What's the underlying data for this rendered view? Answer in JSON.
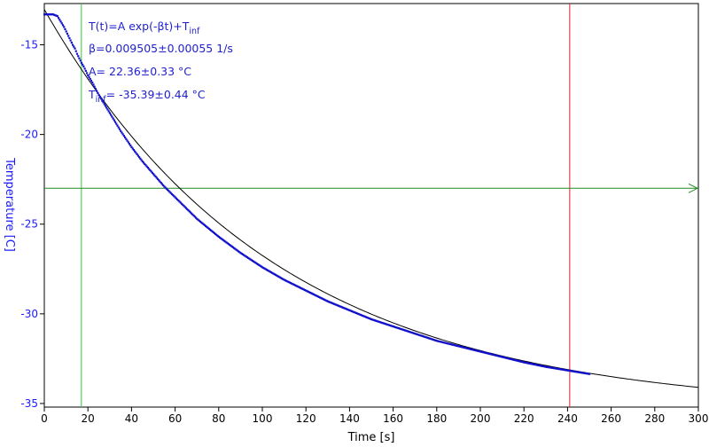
{
  "chart_data": {
    "type": "scatter",
    "xlabel": "Time [s]",
    "ylabel": "Temperature [C]",
    "xlim": [
      0,
      300
    ],
    "ylim": [
      -35,
      -12
    ],
    "xticks": [
      0,
      20,
      40,
      60,
      80,
      100,
      120,
      140,
      160,
      180,
      200,
      220,
      240,
      260,
      280,
      300
    ],
    "yticks": [
      -15,
      -20,
      -25,
      -30,
      -35
    ],
    "grid": false,
    "colors": {
      "data": "#1111cc",
      "fit": "#000000",
      "green_cursor": "#33cc33",
      "red_cursor": "#dd2222",
      "hline": "#228b22",
      "ytick_text": "#1a1aff",
      "annotation_text": "#2222cc"
    },
    "annotations": {
      "formula_main": "T(t)=A exp(-βt)+T",
      "formula_sub": "inf",
      "beta": "β=0.009505±0.00055 1/s",
      "A": "A= 22.36±0.33 °C",
      "tinf_prefix": "T",
      "tinf_sub": "inf",
      "tinf_value": "= -35.39±0.44 °C"
    },
    "fit": {
      "A": 22.36,
      "beta": 0.009505,
      "T_inf": -35.39,
      "x_range": [
        0,
        300
      ]
    },
    "series": [
      {
        "kind": "measured",
        "x": [
          0,
          2,
          4,
          6,
          7,
          8,
          9,
          10,
          11,
          12,
          13,
          14,
          15,
          16,
          17,
          18,
          20,
          22,
          25,
          30,
          35,
          40,
          45,
          50,
          55,
          60,
          65,
          70,
          80,
          90,
          100,
          110,
          120,
          130,
          140,
          150,
          160,
          170,
          180,
          190,
          200,
          210,
          220,
          230,
          240,
          245,
          250
        ],
        "y": [
          -13.3,
          -13.3,
          -13.3,
          -13.4,
          -13.6,
          -13.8,
          -14.0,
          -14.25,
          -14.5,
          -14.75,
          -15.0,
          -15.2,
          -15.5,
          -15.75,
          -16.0,
          -16.2,
          -16.7,
          -17.1,
          -17.8,
          -18.8,
          -19.8,
          -20.7,
          -21.5,
          -22.2,
          -22.9,
          -23.5,
          -24.1,
          -24.7,
          -25.7,
          -26.6,
          -27.4,
          -28.1,
          -28.7,
          -29.3,
          -29.8,
          -30.3,
          -30.7,
          -31.1,
          -31.5,
          -31.8,
          -32.1,
          -32.4,
          -32.7,
          -32.95,
          -33.15,
          -33.25,
          -33.35
        ]
      }
    ],
    "cursors": {
      "green_vertical_x": 17,
      "red_vertical_x": 241,
      "horizontal_y": -23
    }
  }
}
